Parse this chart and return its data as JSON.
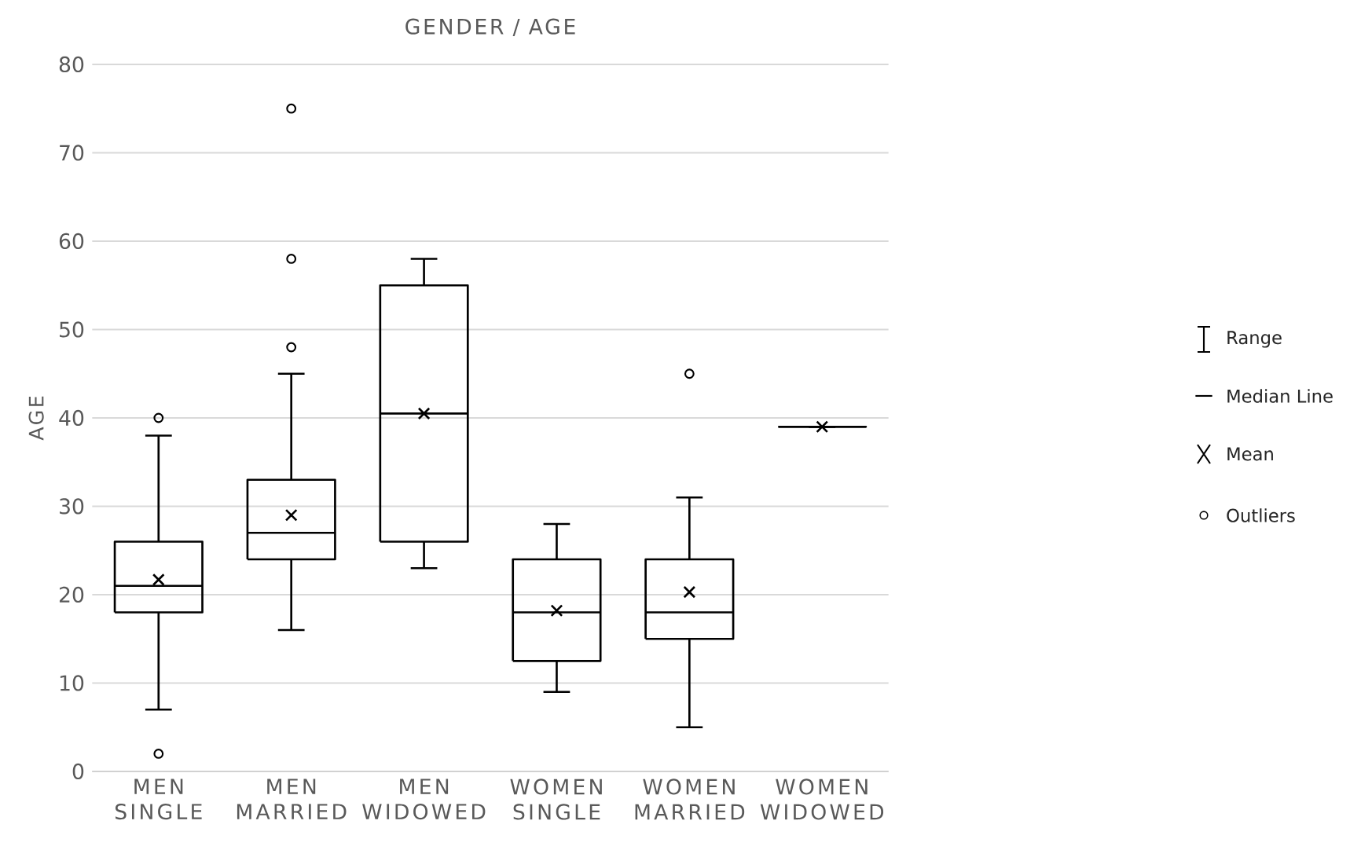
{
  "chart_data": {
    "type": "box",
    "title": "GENDER / AGE",
    "ylabel": "AGE",
    "categories": [
      "MEN SINGLE",
      "MEN MARRIED",
      "MEN WIDOWED",
      "WOMEN SINGLE",
      "WOMEN MARRIED",
      "WOMEN WIDOWED"
    ],
    "boxes": [
      {
        "low": 7,
        "q1": 18,
        "median": 21,
        "q3": 26,
        "high": 38,
        "mean": 21.7,
        "outliers": [
          40,
          2
        ]
      },
      {
        "low": 16,
        "q1": 24,
        "median": 27,
        "q3": 33,
        "high": 45,
        "mean": 29,
        "outliers": [
          48,
          58,
          75
        ]
      },
      {
        "low": 23,
        "q1": 26,
        "median": 40.5,
        "q3": 55,
        "high": 58,
        "mean": 40.5
      },
      {
        "low": 9,
        "q1": 12.5,
        "median": 18,
        "q3": 24,
        "high": 28,
        "mean": 18.2
      },
      {
        "low": 5,
        "q1": 15,
        "median": 18,
        "q3": 24,
        "high": 31,
        "mean": 20.3,
        "outliers": [
          45
        ]
      },
      {
        "low": 39,
        "q1": 39,
        "median": 39,
        "q3": 39,
        "high": 39,
        "mean": 39
      }
    ],
    "color": "#000000",
    "ylim": [
      0,
      80
    ],
    "yticks": [
      0,
      10,
      20,
      30,
      40,
      50,
      60,
      70,
      80
    ],
    "grid": "y",
    "annotations": [
      "Range",
      "Median Line",
      "Mean",
      "Outliers"
    ]
  }
}
